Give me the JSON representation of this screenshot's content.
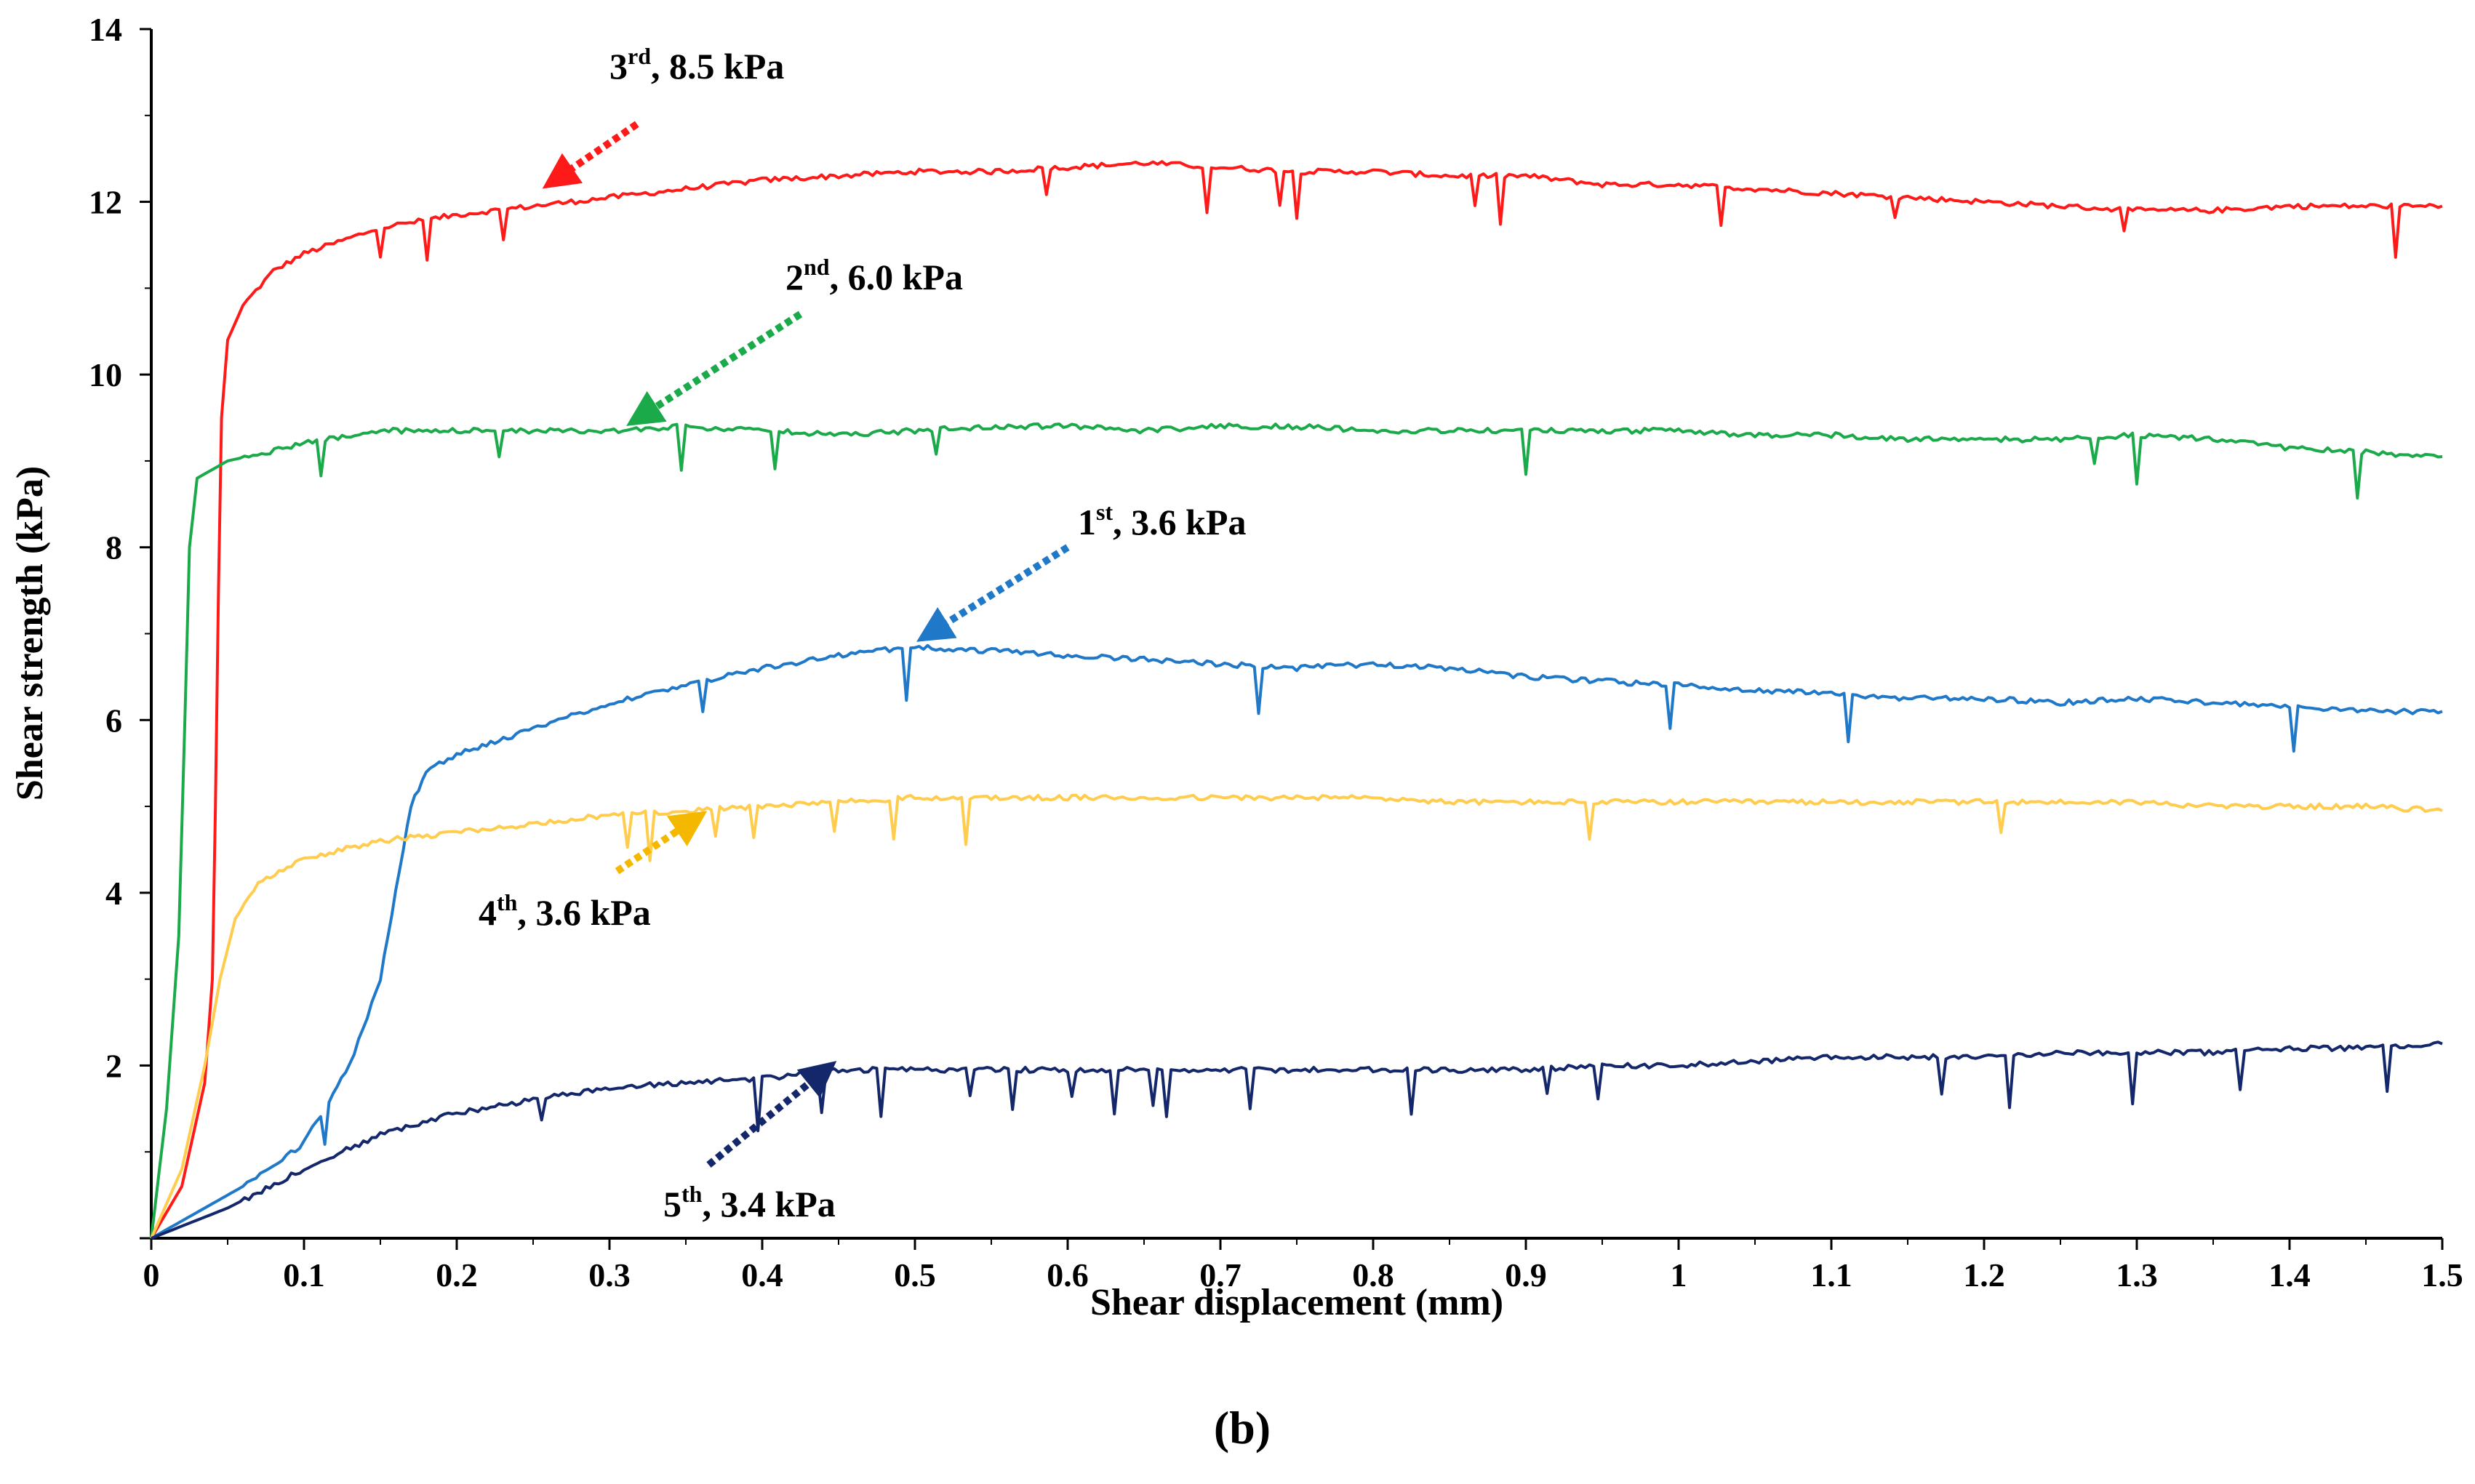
{
  "chart_data": {
    "type": "line",
    "caption": "(b)",
    "xlabel": "Shear displacement (mm)",
    "ylabel": "Shear strength (kPa)",
    "xlim": [
      0,
      1.5
    ],
    "ylim": [
      0,
      14
    ],
    "x_ticks": [
      "0",
      "0.1",
      "0.2",
      "0.3",
      "0.4",
      "0.5",
      "0.6",
      "0.7",
      "0.8",
      "0.9",
      "1",
      "1.1",
      "1.2",
      "1.3",
      "1.4",
      "1.5"
    ],
    "y_ticks": [
      "2",
      "4",
      "6",
      "8",
      "10",
      "12",
      "14"
    ],
    "grid": false,
    "series": [
      {
        "name": "3rd, 8.5 kPa",
        "color": "#FF1A1A",
        "points": [
          [
            0,
            0
          ],
          [
            0.02,
            0.6
          ],
          [
            0.035,
            1.8
          ],
          [
            0.04,
            3
          ],
          [
            0.042,
            5
          ],
          [
            0.044,
            7.5
          ],
          [
            0.046,
            9.5
          ],
          [
            0.05,
            10.4
          ],
          [
            0.06,
            10.8
          ],
          [
            0.08,
            11.2
          ],
          [
            0.1,
            11.4
          ],
          [
            0.15,
            11.7
          ],
          [
            0.2,
            11.85
          ],
          [
            0.25,
            11.95
          ],
          [
            0.3,
            12.05
          ],
          [
            0.35,
            12.15
          ],
          [
            0.4,
            12.25
          ],
          [
            0.45,
            12.3
          ],
          [
            0.5,
            12.35
          ],
          [
            0.55,
            12.35
          ],
          [
            0.6,
            12.4
          ],
          [
            0.65,
            12.45
          ],
          [
            0.7,
            12.4
          ],
          [
            0.75,
            12.35
          ],
          [
            0.8,
            12.35
          ],
          [
            0.85,
            12.3
          ],
          [
            0.9,
            12.3
          ],
          [
            0.95,
            12.2
          ],
          [
            1.0,
            12.2
          ],
          [
            1.05,
            12.15
          ],
          [
            1.1,
            12.1
          ],
          [
            1.15,
            12.05
          ],
          [
            1.2,
            12.0
          ],
          [
            1.25,
            11.95
          ],
          [
            1.3,
            11.9
          ],
          [
            1.35,
            11.9
          ],
          [
            1.4,
            11.95
          ],
          [
            1.45,
            11.95
          ],
          [
            1.5,
            11.95
          ]
        ]
      },
      {
        "name": "2nd, 6.0 kPa",
        "color": "#1BAA4A",
        "points": [
          [
            0,
            0
          ],
          [
            0.01,
            1.5
          ],
          [
            0.018,
            3.5
          ],
          [
            0.022,
            6
          ],
          [
            0.025,
            8
          ],
          [
            0.03,
            8.8
          ],
          [
            0.05,
            9.0
          ],
          [
            0.1,
            9.2
          ],
          [
            0.15,
            9.35
          ],
          [
            0.2,
            9.35
          ],
          [
            0.25,
            9.35
          ],
          [
            0.3,
            9.35
          ],
          [
            0.35,
            9.4
          ],
          [
            0.4,
            9.35
          ],
          [
            0.45,
            9.3
          ],
          [
            0.5,
            9.35
          ],
          [
            0.55,
            9.4
          ],
          [
            0.6,
            9.4
          ],
          [
            0.65,
            9.35
          ],
          [
            0.7,
            9.4
          ],
          [
            0.75,
            9.4
          ],
          [
            0.8,
            9.35
          ],
          [
            0.85,
            9.35
          ],
          [
            0.9,
            9.35
          ],
          [
            0.95,
            9.35
          ],
          [
            1.0,
            9.35
          ],
          [
            1.05,
            9.3
          ],
          [
            1.1,
            9.3
          ],
          [
            1.15,
            9.25
          ],
          [
            1.2,
            9.25
          ],
          [
            1.25,
            9.25
          ],
          [
            1.3,
            9.3
          ],
          [
            1.35,
            9.25
          ],
          [
            1.4,
            9.15
          ],
          [
            1.45,
            9.1
          ],
          [
            1.5,
            9.05
          ]
        ]
      },
      {
        "name": "1st, 3.6 kPa",
        "color": "#1F78C8",
        "points": [
          [
            0,
            0
          ],
          [
            0.03,
            0.3
          ],
          [
            0.06,
            0.6
          ],
          [
            0.1,
            1.1
          ],
          [
            0.13,
            2.0
          ],
          [
            0.15,
            3.0
          ],
          [
            0.16,
            4.0
          ],
          [
            0.17,
            5.0
          ],
          [
            0.18,
            5.4
          ],
          [
            0.2,
            5.6
          ],
          [
            0.25,
            5.9
          ],
          [
            0.3,
            6.2
          ],
          [
            0.35,
            6.4
          ],
          [
            0.4,
            6.6
          ],
          [
            0.45,
            6.75
          ],
          [
            0.5,
            6.85
          ],
          [
            0.55,
            6.8
          ],
          [
            0.6,
            6.75
          ],
          [
            0.65,
            6.7
          ],
          [
            0.7,
            6.65
          ],
          [
            0.75,
            6.6
          ],
          [
            0.8,
            6.65
          ],
          [
            0.85,
            6.6
          ],
          [
            0.9,
            6.5
          ],
          [
            0.95,
            6.45
          ],
          [
            1.0,
            6.4
          ],
          [
            1.05,
            6.35
          ],
          [
            1.1,
            6.3
          ],
          [
            1.15,
            6.25
          ],
          [
            1.2,
            6.25
          ],
          [
            1.25,
            6.2
          ],
          [
            1.3,
            6.25
          ],
          [
            1.35,
            6.2
          ],
          [
            1.4,
            6.15
          ],
          [
            1.45,
            6.1
          ],
          [
            1.5,
            6.1
          ]
        ]
      },
      {
        "name": "4th, 3.6 kPa",
        "color": "#FFCC4D",
        "points": [
          [
            0,
            0
          ],
          [
            0.02,
            0.8
          ],
          [
            0.035,
            2.0
          ],
          [
            0.045,
            3.0
          ],
          [
            0.055,
            3.7
          ],
          [
            0.07,
            4.1
          ],
          [
            0.1,
            4.4
          ],
          [
            0.15,
            4.6
          ],
          [
            0.2,
            4.7
          ],
          [
            0.25,
            4.8
          ],
          [
            0.3,
            4.9
          ],
          [
            0.35,
            4.95
          ],
          [
            0.4,
            5.0
          ],
          [
            0.45,
            5.05
          ],
          [
            0.5,
            5.1
          ],
          [
            0.55,
            5.1
          ],
          [
            0.6,
            5.1
          ],
          [
            0.65,
            5.1
          ],
          [
            0.7,
            5.1
          ],
          [
            0.75,
            5.1
          ],
          [
            0.8,
            5.1
          ],
          [
            0.85,
            5.05
          ],
          [
            0.9,
            5.05
          ],
          [
            0.95,
            5.05
          ],
          [
            1.0,
            5.05
          ],
          [
            1.05,
            5.05
          ],
          [
            1.1,
            5.05
          ],
          [
            1.15,
            5.05
          ],
          [
            1.2,
            5.05
          ],
          [
            1.25,
            5.05
          ],
          [
            1.3,
            5.05
          ],
          [
            1.35,
            5.0
          ],
          [
            1.4,
            5.0
          ],
          [
            1.45,
            5.0
          ],
          [
            1.5,
            4.95
          ]
        ]
      },
      {
        "name": "5th, 3.4 kPa",
        "color": "#14276B",
        "points": [
          [
            0,
            0
          ],
          [
            0.05,
            0.35
          ],
          [
            0.1,
            0.8
          ],
          [
            0.15,
            1.2
          ],
          [
            0.2,
            1.45
          ],
          [
            0.25,
            1.6
          ],
          [
            0.3,
            1.75
          ],
          [
            0.35,
            1.8
          ],
          [
            0.4,
            1.85
          ],
          [
            0.45,
            1.95
          ],
          [
            0.5,
            1.95
          ],
          [
            0.55,
            1.95
          ],
          [
            0.6,
            1.95
          ],
          [
            0.65,
            1.95
          ],
          [
            0.7,
            1.95
          ],
          [
            0.75,
            1.95
          ],
          [
            0.8,
            1.95
          ],
          [
            0.85,
            1.95
          ],
          [
            0.9,
            1.95
          ],
          [
            0.95,
            2.0
          ],
          [
            1.0,
            2.0
          ],
          [
            1.05,
            2.05
          ],
          [
            1.1,
            2.1
          ],
          [
            1.15,
            2.1
          ],
          [
            1.2,
            2.1
          ],
          [
            1.25,
            2.15
          ],
          [
            1.3,
            2.15
          ],
          [
            1.35,
            2.15
          ],
          [
            1.4,
            2.2
          ],
          [
            1.45,
            2.2
          ],
          [
            1.5,
            2.25
          ]
        ]
      }
    ],
    "annotations": [
      {
        "label": "3rd, 8.5 kPa",
        "base": "3",
        "sup": "rd",
        "rest": ", 8.5 kPa",
        "color": "#FF1A1A",
        "arrow_from": [
          0.318,
          12.9
        ],
        "arrow_to": [
          0.26,
          12.2
        ]
      },
      {
        "label": "2nd, 6.0 kPa",
        "base": "2",
        "sup": "nd",
        "rest": ", 6.0 kPa",
        "color": "#1BAA4A",
        "arrow_from": [
          0.425,
          10.7
        ],
        "arrow_to": [
          0.315,
          9.45
        ]
      },
      {
        "label": "1st, 3.6 kPa",
        "base": "1",
        "sup": "st",
        "rest": ", 3.6 kPa",
        "color": "#1F78C8",
        "arrow_from": [
          0.6,
          8.0
        ],
        "arrow_to": [
          0.505,
          6.95
        ]
      },
      {
        "label": "4th, 3.6 kPa",
        "base": "4",
        "sup": "th",
        "rest": ", 3.6 kPa",
        "color": "#F5B800",
        "arrow_from": [
          0.305,
          4.25
        ],
        "arrow_to": [
          0.36,
          4.9
        ]
      },
      {
        "label": "5th, 3.4 kPa",
        "base": "5",
        "sup": "th",
        "rest": ", 3.4 kPa",
        "color": "#14276B",
        "arrow_from": [
          0.365,
          0.85
        ],
        "arrow_to": [
          0.445,
          2.0
        ]
      }
    ]
  }
}
